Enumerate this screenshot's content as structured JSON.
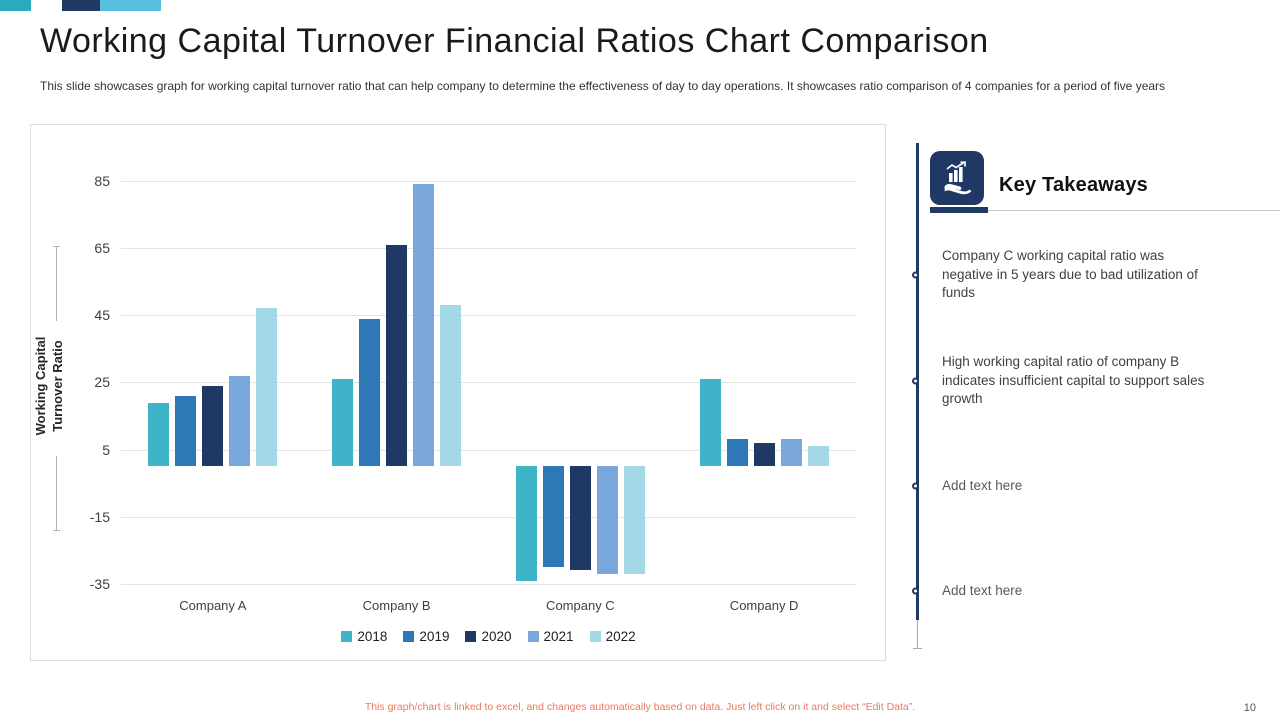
{
  "slide": {
    "title": "Working Capital Turnover Financial Ratios Chart Comparison",
    "subtitle": "This slide showcases graph for working capital turnover ratio that can help company to determine the effectiveness of day to day operations. It showcases ratio comparison of 4 companies for a period of five years",
    "footer_note": "This graph/chart is linked to excel, and changes automatically based on data. Just left click on it and select “Edit Data”.",
    "page_number": "10"
  },
  "accent_colors": {
    "teal": "#2BA9C1",
    "navy": "#1F3864",
    "light_blue": "#57BFE0"
  },
  "chart_data": {
    "type": "bar",
    "title": "",
    "categories": [
      "Company A",
      "Company B",
      "Company C",
      "Company D"
    ],
    "series": [
      {
        "name": "2018",
        "color": "#3FB3C7",
        "values": [
          19,
          26,
          -34,
          26
        ]
      },
      {
        "name": "2019",
        "color": "#2E78B5",
        "values": [
          21,
          44,
          -30,
          8
        ]
      },
      {
        "name": "2020",
        "color": "#1F3864",
        "values": [
          24,
          66,
          -31,
          7
        ]
      },
      {
        "name": "2021",
        "color": "#7AA7DB",
        "values": [
          27,
          84,
          -32,
          8
        ]
      },
      {
        "name": "2022",
        "color": "#A3D8E6",
        "values": [
          47,
          48,
          -32,
          6
        ]
      }
    ],
    "xlabel": "",
    "ylabel": "Working Capital Turnover Ratio",
    "yticks": [
      85,
      65,
      45,
      25,
      5,
      -15,
      -35
    ],
    "ylim": [
      -38,
      90
    ],
    "grid": true,
    "legend_position": "bottom"
  },
  "key_takeaways": {
    "heading": "Key Takeaways",
    "icon": "hand-holding-chart-icon",
    "items": [
      "Company C working capital ratio was negative in 5 years due to bad utilization of funds",
      "High working capital ratio of company B indicates insufficient capital to support sales growth",
      "Add text here",
      "Add text here"
    ]
  }
}
